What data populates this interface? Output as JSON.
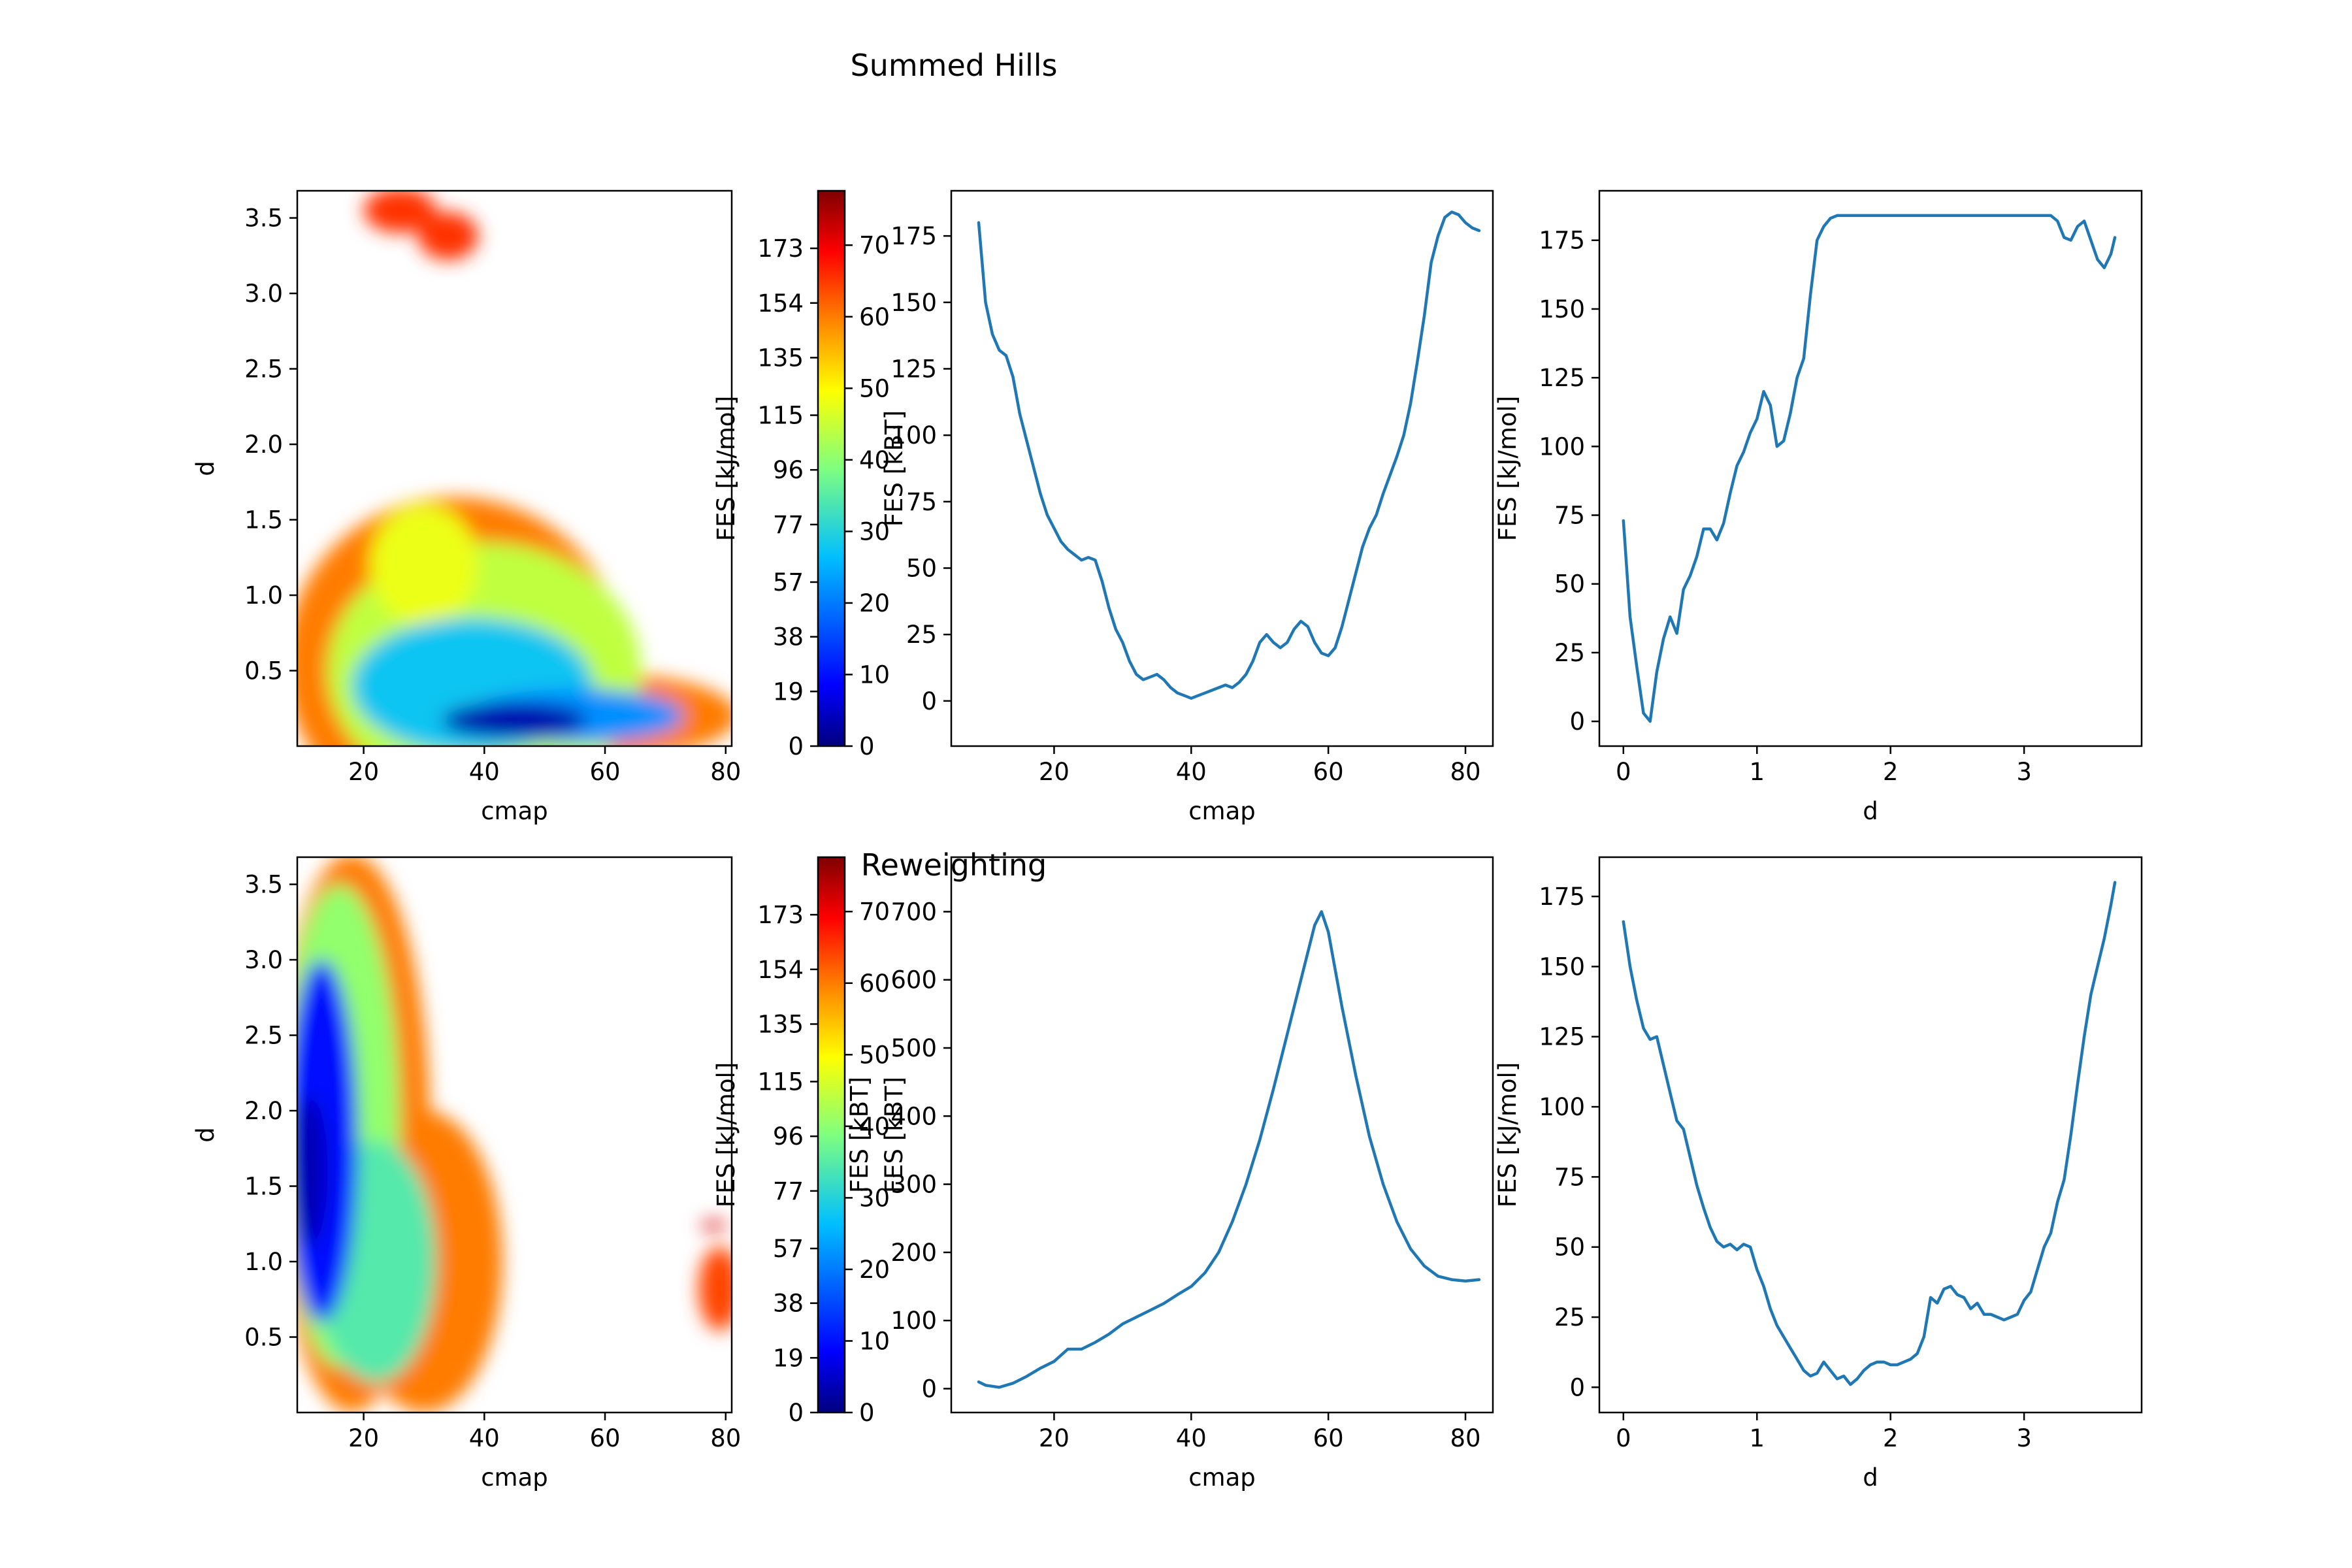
{
  "figure": {
    "title_top": "Summed Hills",
    "title_bottom": "Reweighting"
  },
  "colormap": {
    "name": "jet",
    "stops": [
      "#00007f",
      "#0000ff",
      "#00bfff",
      "#7fff7f",
      "#ffff00",
      "#ff8000",
      "#ff0000",
      "#7f0000"
    ]
  },
  "chart_data": [
    {
      "id": "top-2d",
      "type": "heatmap",
      "title": "",
      "xlabel": "cmap",
      "ylabel": "d",
      "xlim": [
        9,
        81
      ],
      "ylim": [
        0,
        3.68
      ],
      "xticks": [
        20,
        40,
        60,
        80
      ],
      "yticks": [
        0.5,
        1.0,
        1.5,
        2.0,
        2.5,
        3.0,
        3.5
      ],
      "regions": [
        {
          "x": 35,
          "y": 0.55,
          "rx": 28,
          "ry": 1.1,
          "level": 0.72
        },
        {
          "x": 60,
          "y": 0.2,
          "rx": 22,
          "ry": 0.28,
          "level": 0.72
        },
        {
          "x": 40,
          "y": 0.5,
          "rx": 26,
          "ry": 0.85,
          "level": 0.5
        },
        {
          "x": 30,
          "y": 1.2,
          "rx": 9,
          "ry": 0.4,
          "level": 0.55
        },
        {
          "x": 38,
          "y": 0.4,
          "rx": 20,
          "ry": 0.45,
          "level": 0.3
        },
        {
          "x": 55,
          "y": 0.2,
          "rx": 18,
          "ry": 0.18,
          "level": 0.25
        },
        {
          "x": 45,
          "y": 0.17,
          "rx": 12,
          "ry": 0.12,
          "level": 0.05
        },
        {
          "x": 26,
          "y": 3.55,
          "rx": 6,
          "ry": 0.15,
          "level": 0.8
        },
        {
          "x": 34,
          "y": 3.38,
          "rx": 5,
          "ry": 0.16,
          "level": 0.8
        }
      ]
    },
    {
      "id": "top-colorbar",
      "type": "colorbar",
      "left_label": "FES [kJ/mol]",
      "right_label": "FES [kBT]",
      "left_ticks": [
        0,
        19,
        38,
        57,
        77,
        96,
        115,
        135,
        154,
        173
      ],
      "right_ticks": [
        0,
        10,
        20,
        30,
        40,
        50,
        60,
        70
      ],
      "left_max": 193,
      "right_max": 77.6
    },
    {
      "id": "top-cmap-1d",
      "type": "line",
      "xlabel": "cmap",
      "ylabel": "",
      "xlim": [
        5,
        84
      ],
      "ylim": [
        -17,
        192
      ],
      "xticks": [
        20,
        40,
        60,
        80
      ],
      "yticks": [
        0,
        25,
        50,
        75,
        100,
        125,
        150,
        175
      ],
      "x": [
        9,
        10,
        11,
        12,
        13,
        14,
        15,
        16,
        17,
        18,
        19,
        20,
        21,
        22,
        23,
        24,
        25,
        26,
        27,
        28,
        29,
        30,
        31,
        32,
        33,
        34,
        35,
        36,
        37,
        38,
        39,
        40,
        41,
        42,
        43,
        44,
        45,
        46,
        47,
        48,
        49,
        50,
        51,
        52,
        53,
        54,
        55,
        56,
        57,
        58,
        59,
        60,
        61,
        62,
        63,
        64,
        65,
        66,
        67,
        68,
        69,
        70,
        71,
        72,
        73,
        74,
        75,
        76,
        77,
        78,
        79,
        80,
        81,
        82
      ],
      "y": [
        180,
        150,
        138,
        132,
        130,
        122,
        108,
        98,
        88,
        78,
        70,
        65,
        60,
        57,
        55,
        53,
        54,
        53,
        45,
        35,
        27,
        22,
        15,
        10,
        8,
        9,
        10,
        8,
        5,
        3,
        2,
        1,
        2,
        3,
        4,
        5,
        6,
        5,
        7,
        10,
        15,
        22,
        25,
        22,
        20,
        22,
        27,
        30,
        28,
        22,
        18,
        17,
        20,
        28,
        38,
        48,
        58,
        65,
        70,
        78,
        85,
        92,
        100,
        112,
        128,
        145,
        165,
        175,
        182,
        184,
        183,
        180,
        178,
        177
      ]
    },
    {
      "id": "top-d-1d",
      "type": "line",
      "xlabel": "d",
      "ylabel": "FES [kJ/mol]",
      "xlim": [
        -0.18,
        3.88
      ],
      "ylim": [
        -9,
        193
      ],
      "xticks": [
        0,
        1,
        2,
        3
      ],
      "yticks": [
        0,
        25,
        50,
        75,
        100,
        125,
        150,
        175
      ],
      "x": [
        0.0,
        0.05,
        0.1,
        0.15,
        0.2,
        0.25,
        0.3,
        0.35,
        0.4,
        0.45,
        0.5,
        0.55,
        0.6,
        0.65,
        0.7,
        0.75,
        0.8,
        0.85,
        0.9,
        0.95,
        1.0,
        1.05,
        1.1,
        1.15,
        1.2,
        1.25,
        1.3,
        1.35,
        1.4,
        1.45,
        1.5,
        1.55,
        1.6,
        1.65,
        1.7,
        1.8,
        2.0,
        2.5,
        3.0,
        3.2,
        3.25,
        3.3,
        3.35,
        3.4,
        3.45,
        3.5,
        3.55,
        3.6,
        3.65,
        3.68
      ],
      "y": [
        73,
        38,
        20,
        3,
        0,
        18,
        30,
        38,
        32,
        48,
        53,
        60,
        70,
        70,
        66,
        72,
        83,
        93,
        98,
        105,
        110,
        120,
        115,
        100,
        102,
        112,
        125,
        132,
        155,
        175,
        180,
        183,
        184,
        184,
        184,
        184,
        184,
        184,
        184,
        184,
        182,
        176,
        175,
        180,
        182,
        175,
        168,
        165,
        170,
        176
      ]
    },
    {
      "id": "bottom-2d",
      "type": "heatmap",
      "title": "",
      "xlabel": "cmap",
      "ylabel": "d",
      "xlim": [
        9,
        81
      ],
      "ylim": [
        0,
        3.68
      ],
      "xticks": [
        20,
        40,
        60,
        80
      ],
      "yticks": [
        0.5,
        1.0,
        1.5,
        2.0,
        2.5,
        3.0,
        3.5
      ],
      "regions": [
        {
          "x": 18,
          "y": 1.85,
          "rx": 13,
          "ry": 1.85,
          "level": 0.72
        },
        {
          "x": 30,
          "y": 1.0,
          "rx": 13,
          "ry": 1.0,
          "level": 0.72
        },
        {
          "x": 16,
          "y": 1.9,
          "rx": 10,
          "ry": 1.6,
          "level": 0.45
        },
        {
          "x": 22,
          "y": 1.0,
          "rx": 10,
          "ry": 0.8,
          "level": 0.38
        },
        {
          "x": 13,
          "y": 1.8,
          "rx": 6,
          "ry": 1.2,
          "level": 0.15
        },
        {
          "x": 11,
          "y": 1.6,
          "rx": 3,
          "ry": 0.5,
          "level": 0.06
        },
        {
          "x": 79,
          "y": 0.82,
          "rx": 3.5,
          "ry": 0.28,
          "level": 0.78
        },
        {
          "x": 78,
          "y": 1.24,
          "rx": 2.2,
          "ry": 0.03,
          "level": 0.9
        }
      ]
    },
    {
      "id": "bottom-colorbar",
      "type": "colorbar",
      "left_label": "FES [kJ/mol]",
      "right_label": "FES [kBT]",
      "left_ticks": [
        0,
        19,
        38,
        57,
        77,
        96,
        115,
        135,
        154,
        173
      ],
      "right_ticks": [
        0,
        10,
        20,
        30,
        40,
        50,
        60,
        70
      ],
      "left_max": 193,
      "right_max": 77.6
    },
    {
      "id": "bottom-cmap-1d",
      "type": "line",
      "xlabel": "cmap",
      "ylabel": "FES [kBT]",
      "xlim": [
        5,
        84
      ],
      "ylim": [
        -35,
        780
      ],
      "xticks": [
        20,
        40,
        60,
        80
      ],
      "yticks": [
        0,
        100,
        200,
        300,
        400,
        500,
        600,
        700
      ],
      "x": [
        9,
        10,
        12,
        14,
        16,
        18,
        20,
        22,
        24,
        26,
        28,
        30,
        32,
        34,
        36,
        38,
        40,
        42,
        44,
        46,
        48,
        50,
        52,
        54,
        56,
        58,
        59,
        60,
        62,
        64,
        66,
        68,
        70,
        72,
        74,
        76,
        78,
        80,
        82
      ],
      "y": [
        10,
        5,
        2,
        8,
        18,
        30,
        40,
        58,
        58,
        68,
        80,
        95,
        105,
        115,
        125,
        138,
        150,
        170,
        200,
        245,
        300,
        365,
        440,
        520,
        600,
        680,
        700,
        670,
        560,
        460,
        370,
        300,
        245,
        205,
        180,
        165,
        160,
        158,
        160
      ]
    },
    {
      "id": "bottom-d-1d",
      "type": "line",
      "xlabel": "d",
      "ylabel": "FES [kJ/mol]",
      "xlim": [
        -0.18,
        3.88
      ],
      "ylim": [
        -9,
        189
      ],
      "xticks": [
        0,
        1,
        2,
        3
      ],
      "yticks": [
        0,
        25,
        50,
        75,
        100,
        125,
        150,
        175
      ],
      "x": [
        0.0,
        0.05,
        0.1,
        0.15,
        0.2,
        0.25,
        0.3,
        0.35,
        0.4,
        0.45,
        0.5,
        0.55,
        0.6,
        0.65,
        0.7,
        0.75,
        0.8,
        0.85,
        0.9,
        0.95,
        1.0,
        1.05,
        1.1,
        1.15,
        1.2,
        1.25,
        1.3,
        1.35,
        1.4,
        1.45,
        1.5,
        1.55,
        1.6,
        1.65,
        1.7,
        1.75,
        1.8,
        1.85,
        1.9,
        1.95,
        2.0,
        2.05,
        2.1,
        2.15,
        2.2,
        2.25,
        2.3,
        2.35,
        2.4,
        2.45,
        2.5,
        2.55,
        2.6,
        2.65,
        2.7,
        2.75,
        2.8,
        2.85,
        2.9,
        2.95,
        3.0,
        3.05,
        3.1,
        3.15,
        3.2,
        3.25,
        3.3,
        3.35,
        3.4,
        3.45,
        3.5,
        3.55,
        3.6,
        3.65,
        3.68
      ],
      "y": [
        166,
        150,
        138,
        128,
        124,
        125,
        115,
        105,
        95,
        92,
        82,
        72,
        64,
        57,
        52,
        50,
        51,
        49,
        51,
        50,
        42,
        36,
        28,
        22,
        18,
        14,
        10,
        6,
        4,
        5,
        9,
        6,
        3,
        4,
        1,
        3,
        6,
        8,
        9,
        9,
        8,
        8,
        9,
        10,
        12,
        18,
        32,
        30,
        35,
        36,
        33,
        32,
        28,
        30,
        26,
        26,
        25,
        24,
        25,
        26,
        31,
        34,
        42,
        50,
        55,
        66,
        74,
        90,
        108,
        125,
        140,
        150,
        160,
        172,
        180
      ]
    }
  ]
}
